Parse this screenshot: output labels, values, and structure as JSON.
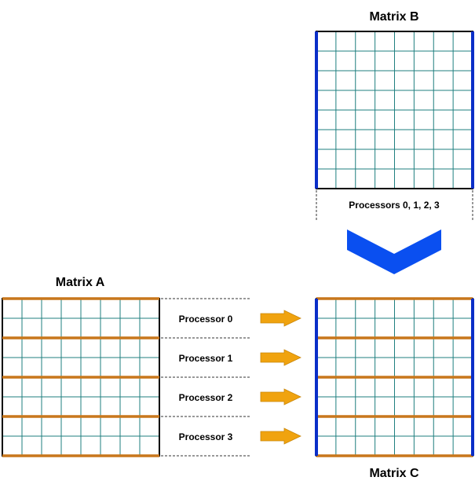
{
  "matrix_a": {
    "title": "Matrix A"
  },
  "matrix_b": {
    "title": "Matrix B",
    "processors_label": "Processors 0, 1, 2, 3"
  },
  "matrix_c": {
    "title": "Matrix C"
  },
  "processors": [
    {
      "label": "Processor 0"
    },
    {
      "label": "Processor 1"
    },
    {
      "label": "Processor 2"
    },
    {
      "label": "Processor 3"
    }
  ],
  "colors": {
    "grid": "#1f7f7f",
    "row_band": "#c8771c",
    "column_band": "#0a2ec8",
    "arrow": "#f0a30f",
    "chevron": "#0a4ff0",
    "dash": "#333333"
  }
}
